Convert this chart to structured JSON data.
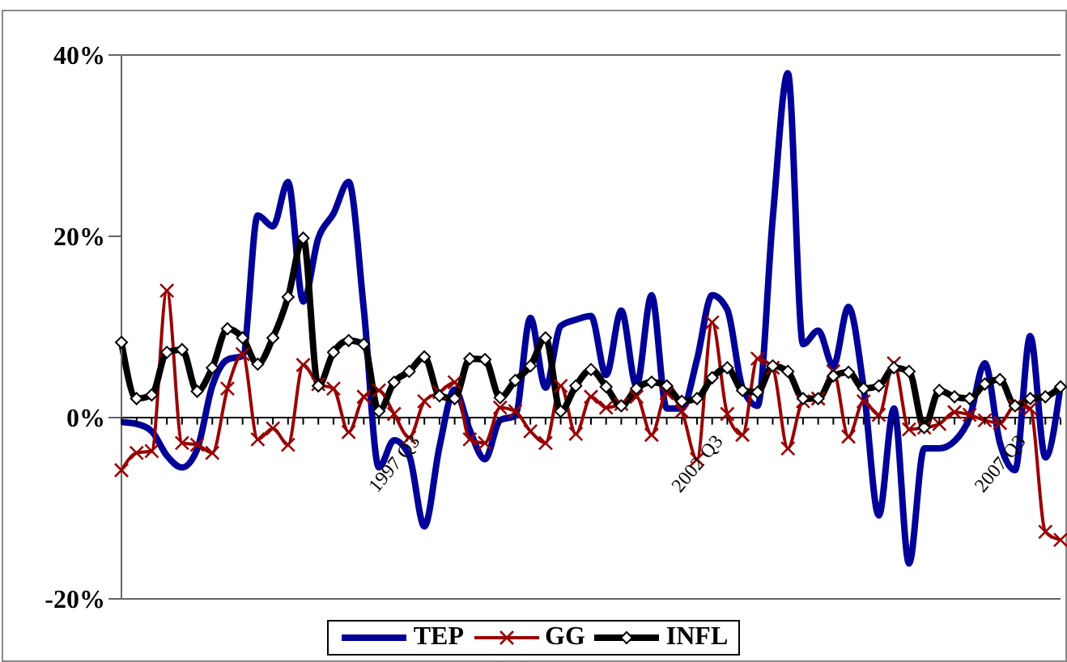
{
  "chart_data": {
    "type": "line",
    "categories": [
      null,
      null,
      null,
      null,
      null,
      null,
      null,
      null,
      null,
      null,
      null,
      null,
      null,
      null,
      null,
      null,
      null,
      null,
      "1997 Q3",
      null,
      null,
      null,
      null,
      null,
      null,
      null,
      null,
      null,
      null,
      null,
      null,
      null,
      null,
      null,
      null,
      null,
      null,
      null,
      "2002 Q3",
      null,
      null,
      null,
      null,
      null,
      null,
      null,
      null,
      null,
      null,
      null,
      null,
      null,
      null,
      null,
      null,
      null,
      null,
      null,
      "2007 Q3",
      null,
      null,
      null,
      null
    ],
    "series": [
      {
        "name": "TEP",
        "color": "#000099",
        "marker": "none",
        "values": [
          -0.5,
          -0.7,
          -1.5,
          -4.2,
          -5.5,
          -3.5,
          3.5,
          6.4,
          6.8,
          22.3,
          21.1,
          26.0,
          12.8,
          19.8,
          22.5,
          26.0,
          12,
          -5.5,
          -2.5,
          -4.2,
          -12,
          -3.2,
          3.1,
          -1.4,
          -4.6,
          -0.3,
          0.2,
          11.0,
          3.3,
          10.1,
          10.8,
          11.2,
          4.7,
          11.8,
          3.5,
          13.5,
          1.0,
          1.0,
          6.4,
          13.5,
          11.9,
          3.3,
          1.3,
          22,
          38,
          8.1,
          9.6,
          5.7,
          12.2,
          3.3,
          -10.8,
          1.0,
          -16.1,
          -3.4,
          -3.4,
          -2.6,
          0,
          6.0,
          -2.8,
          -5.8,
          9.0,
          -4.4,
          3.5
        ]
      },
      {
        "name": "GG",
        "color": "#990000",
        "marker": "cross",
        "values": [
          -5.8,
          -3.9,
          -3.7,
          14.0,
          -2.8,
          -3.0,
          -3.9,
          3.2,
          7.0,
          -2.4,
          -1.2,
          -3.0,
          5.8,
          3.7,
          3.2,
          -1.6,
          2.3,
          3.0,
          0.4,
          -2.2,
          1.8,
          2.8,
          3.9,
          -2.4,
          -2.8,
          1.1,
          0.7,
          -1.5,
          -2.8,
          3.5,
          -1.8,
          2.3,
          1.1,
          1.5,
          2.3,
          -1.9,
          2.7,
          0.7,
          -4.6,
          10.5,
          0.4,
          -1.9,
          6.5,
          5.5,
          -3.4,
          1.8,
          2.1,
          5.1,
          -2.1,
          1.8,
          0.3,
          6.0,
          -1.3,
          -1.1,
          -0.7,
          0.6,
          0.3,
          -0.3,
          -0.6,
          1.3,
          1.0,
          -12.6,
          -13.5
        ]
      },
      {
        "name": "INFL",
        "color": "#000000",
        "marker": "diamond",
        "values": [
          8.3,
          2.1,
          2.5,
          7.2,
          7.5,
          2.9,
          5.5,
          9.8,
          8.8,
          5.9,
          8.8,
          13.3,
          19.8,
          3.5,
          7.2,
          8.5,
          8.1,
          0.7,
          3.9,
          5.1,
          6.7,
          2.4,
          2.1,
          6.5,
          6.4,
          2.2,
          4.1,
          5.7,
          8.8,
          0.7,
          3.5,
          5.3,
          3.4,
          1.3,
          3.2,
          3.9,
          3.5,
          1.8,
          2.1,
          4.4,
          5.5,
          3.0,
          2.8,
          5.7,
          5.1,
          2.1,
          2.1,
          4.6,
          5.0,
          3.2,
          3.5,
          5.5,
          5.1,
          -1.1,
          3.0,
          2.3,
          2.1,
          3.7,
          4.2,
          1.3,
          2.1,
          2.3,
          3.4
        ]
      }
    ],
    "ylim": [
      -20,
      40
    ],
    "yticks": [
      {
        "value": -20,
        "label": "-20%"
      },
      {
        "value": 0,
        "label": "0%"
      },
      {
        "value": 20,
        "label": "20%"
      },
      {
        "value": 40,
        "label": "40%"
      }
    ],
    "grid": false,
    "legend": "bottom",
    "line_style": "solid"
  }
}
